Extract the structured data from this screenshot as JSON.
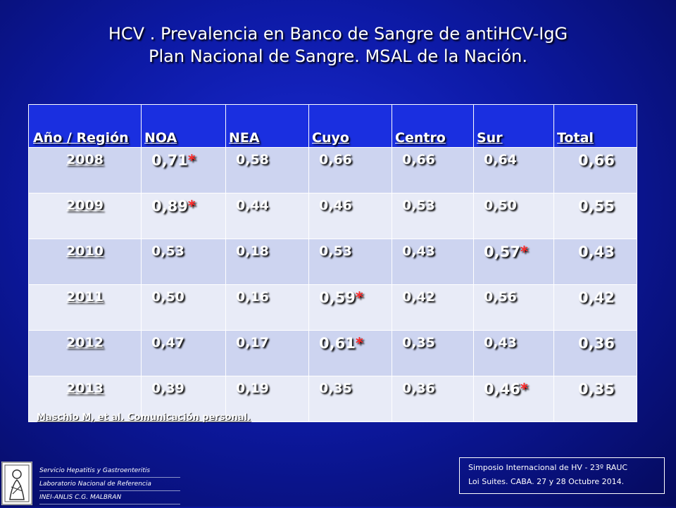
{
  "title": {
    "line1": "HCV . Prevalencia en Banco de Sangre de antiHCV-IgG",
    "line2": "Plan Nacional de Sangre. MSAL de la Nación."
  },
  "table": {
    "headers": [
      "Año / Región",
      "NOA",
      "NEA",
      "Cuyo",
      "Centro",
      "Sur",
      "Total"
    ],
    "rows": [
      {
        "year": "2008",
        "noa": "0,71",
        "nea": "0,58",
        "cuyo": "0,66",
        "centro": "0,66",
        "sur": "0,64",
        "total": "0,66"
      },
      {
        "year": "2009",
        "noa": "0,89",
        "nea": "0,44",
        "cuyo": "0,46",
        "centro": "0,53",
        "sur": "0,50",
        "total": "0,55"
      },
      {
        "year": "2010",
        "noa": "0,53",
        "nea": "0,18",
        "cuyo": "0,53",
        "centro": "0,43",
        "sur": "0,57",
        "total": "0,43"
      },
      {
        "year": "2011",
        "noa": "0,50",
        "nea": "0,16",
        "cuyo": "0,59",
        "centro": "0,42",
        "sur": "0,56",
        "total": "0,42"
      },
      {
        "year": "2012",
        "noa": "0,47",
        "nea": "0,17",
        "cuyo": "0,61",
        "centro": "0,35",
        "sur": "0,43",
        "total": "0,36"
      },
      {
        "year": "2013",
        "noa": "0,39",
        "nea": "0,19",
        "cuyo": "0,35",
        "centro": "0,36",
        "sur": "0,46",
        "total": "0,35"
      }
    ],
    "star": "*",
    "star_color": "#ff2a2a"
  },
  "reference": "Maschio M, et al. Comunicación personal.",
  "institution": {
    "line1": "Servicio Hepatitis y Gastroenteritis",
    "line2": "Laboratorio Nacional de Referencia",
    "line3": "INEI-ANLIS C.G. MALBRAN"
  },
  "event": {
    "line1": "Simposio Internacional de HV - 23º RAUC",
    "line2": "Loi Suites. CABA.  27 y 28  Octubre 2014."
  }
}
